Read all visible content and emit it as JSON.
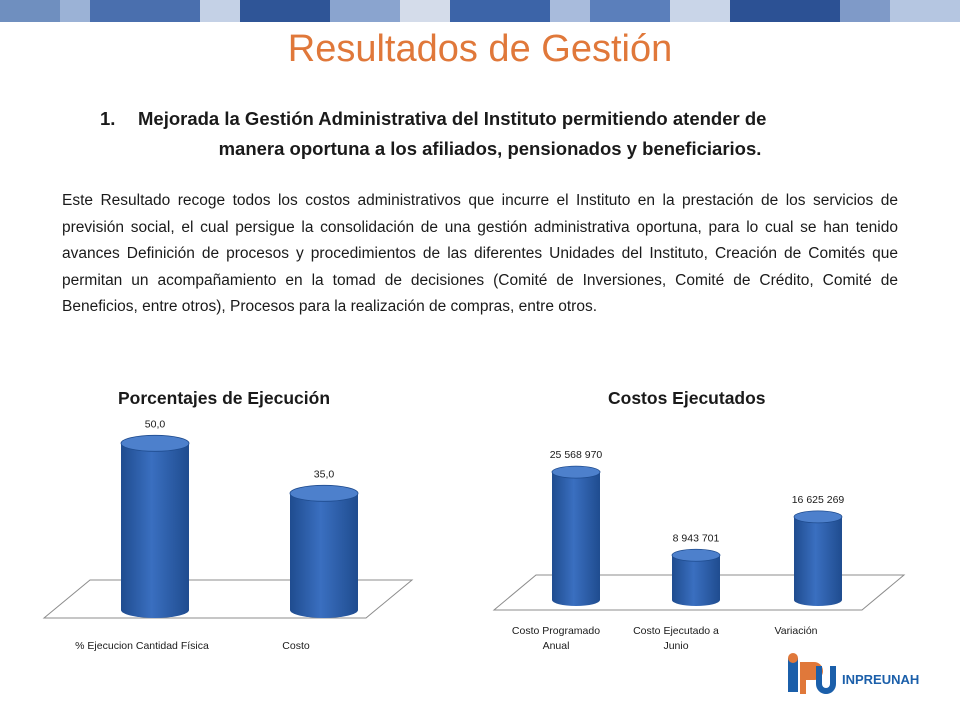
{
  "slide": {
    "title": "Resultados de Gestión",
    "heading_number": "1.",
    "heading_line1": "Mejorada la Gestión Administrativa del Instituto permitiendo atender de",
    "heading_line2": "manera oportuna a los afiliados, pensionados y beneficiarios.",
    "paragraph": "Este Resultado recoge todos los costos administrativos que incurre el Instituto en la prestación de los servicios de previsión social, el cual persigue la consolidación de una gestión administrativa oportuna, para lo cual se han tenido avances Definición de procesos y procedimientos de las diferentes Unidades del Instituto, Creación de Comités que permitan un acompañamiento en la tomad de decisiones (Comité de  Inversiones, Comité de Crédito, Comité de Beneficios, entre otros), Procesos para la realización de compras, entre otros.",
    "brand": "INPREUNAH",
    "colors": {
      "title": "#E0783A",
      "bar": "#3A6FC0",
      "bar_dark": "#1F4C8F",
      "brand": "#1B5FAA"
    }
  },
  "chart_data": [
    {
      "type": "bar",
      "title": "Porcentajes de Ejecución",
      "categories": [
        "% Ejecucion Cantidad Física",
        "Costo"
      ],
      "values": [
        50.0,
        35.0
      ],
      "value_labels": [
        "50,0",
        "35,0"
      ],
      "style": "3d-cylinder",
      "ylim": [
        0,
        60
      ]
    },
    {
      "type": "bar",
      "title": "Costos Ejecutados",
      "categories": [
        "Costo Programado Anual",
        "Costo Ejecutado a Junio",
        "Variación"
      ],
      "category_lines": [
        [
          "Costo Programado",
          "Anual"
        ],
        [
          "Costo Ejecutado a",
          "Junio"
        ],
        [
          "Variación"
        ]
      ],
      "values": [
        25568970,
        8943701,
        16625269
      ],
      "value_labels": [
        "25 568 970",
        "8 943 701",
        "16 625 269"
      ],
      "style": "3d-cylinder",
      "ylim": [
        0,
        30000000
      ]
    }
  ]
}
